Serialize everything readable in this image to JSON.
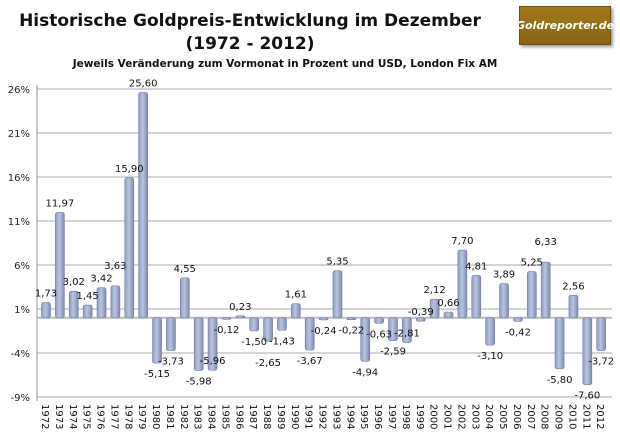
{
  "chart_data": {
    "type": "bar",
    "title": "Historische Goldpreis-Entwicklung  im Dezember",
    "title_line2": "(1972 - 2012)",
    "subtitle": "Jeweils Veränderung zum Vormonat in Prozent und USD, London Fix AM",
    "logo_text": "Goldreporter.de",
    "xlabel": "",
    "ylabel": "",
    "ylim": [
      -9,
      26
    ],
    "yticks": [
      "-9%",
      "-4%",
      "1%",
      "6%",
      "11%",
      "16%",
      "21%",
      "26%"
    ],
    "ytick_values": [
      -9,
      -4,
      1,
      6,
      11,
      16,
      21,
      26
    ],
    "grid": true,
    "bar_color": "#b8c4e0",
    "categories": [
      "1972",
      "1973",
      "1974",
      "1975",
      "1976",
      "1977",
      "1978",
      "1979",
      "1980",
      "1981",
      "1982",
      "1983",
      "1984",
      "1985",
      "1986",
      "1987",
      "1988",
      "1989",
      "1990",
      "1991",
      "1992",
      "1993",
      "1994",
      "1995",
      "1996",
      "1997",
      "1998",
      "1999",
      "2000",
      "2001",
      "2002",
      "2003",
      "2004",
      "2005",
      "2006",
      "2007",
      "2008",
      "2009",
      "2010",
      "2011",
      "2012"
    ],
    "values": [
      1.73,
      11.97,
      3.02,
      1.45,
      3.42,
      3.63,
      15.9,
      25.6,
      -5.15,
      -3.73,
      4.55,
      -5.98,
      -5.96,
      -0.12,
      0.23,
      -1.5,
      -2.65,
      -1.43,
      1.61,
      -3.67,
      -0.24,
      5.35,
      -0.22,
      -4.94,
      -0.63,
      -2.59,
      -2.81,
      -0.39,
      2.12,
      0.66,
      7.7,
      4.81,
      -3.1,
      3.89,
      -0.42,
      5.25,
      6.33,
      -5.8,
      2.56,
      -7.6,
      -3.72
    ],
    "data_labels": [
      "1,73",
      "11,97",
      "3,02",
      "1,45",
      "3,42",
      "3,63",
      "15,90",
      "25,60",
      "-5,15",
      "-3,73",
      "4,55",
      "-5,98",
      "-5,96",
      "-0,12",
      "0,23",
      "-1,50",
      "-2,65",
      "-1,43",
      "1,61",
      "-3,67",
      "-0,24",
      "5,35",
      "-0,22",
      "-4,94",
      "-0,63",
      "-2,59",
      "-2,81",
      "-0,39",
      "2,12",
      "0,66",
      "7,70",
      "4,81",
      "-3,10",
      "3,89",
      "-0,42",
      "5,25",
      "6,33",
      "-5,80",
      "2,56",
      "-7,60",
      "-3,72"
    ]
  }
}
